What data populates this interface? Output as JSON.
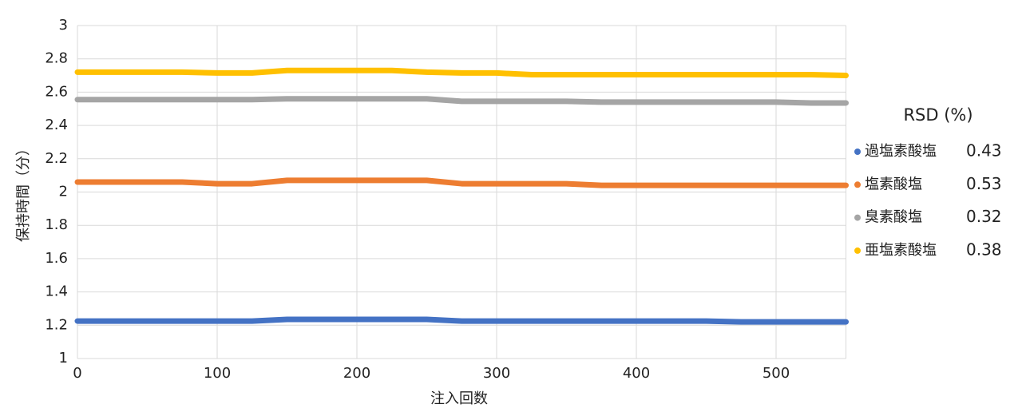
{
  "chart_data": {
    "type": "line",
    "x_label": "注入回数",
    "y_label": "保持時間（分）",
    "x": [
      0,
      25,
      50,
      75,
      100,
      125,
      150,
      175,
      200,
      225,
      250,
      275,
      300,
      325,
      350,
      375,
      400,
      425,
      450,
      475,
      500,
      525,
      550
    ],
    "xlim": [
      0,
      550
    ],
    "xticks": [
      0,
      100,
      200,
      300,
      400,
      500
    ],
    "ylim": [
      1,
      3
    ],
    "yticks": [
      1,
      1.2,
      1.4,
      1.6,
      1.8,
      2,
      2.2,
      2.4,
      2.6,
      2.8,
      3
    ],
    "grid": true,
    "legend_title": "RSD (%)",
    "legend_position": "right",
    "series": [
      {
        "name": "過塩素酸塩",
        "color": "#4472c4",
        "rsd": "0.43",
        "values": [
          1.225,
          1.225,
          1.225,
          1.225,
          1.225,
          1.225,
          1.235,
          1.235,
          1.235,
          1.235,
          1.235,
          1.225,
          1.225,
          1.225,
          1.225,
          1.225,
          1.225,
          1.225,
          1.225,
          1.22,
          1.22,
          1.22,
          1.22
        ]
      },
      {
        "name": "塩素酸塩",
        "color": "#ed7d31",
        "rsd": "0.53",
        "values": [
          2.06,
          2.06,
          2.06,
          2.06,
          2.05,
          2.05,
          2.07,
          2.07,
          2.07,
          2.07,
          2.07,
          2.05,
          2.05,
          2.05,
          2.05,
          2.04,
          2.04,
          2.04,
          2.04,
          2.04,
          2.04,
          2.04,
          2.04
        ]
      },
      {
        "name": "臭素酸塩",
        "color": "#a5a5a5",
        "rsd": "0.32",
        "values": [
          2.555,
          2.555,
          2.555,
          2.555,
          2.555,
          2.555,
          2.56,
          2.56,
          2.56,
          2.56,
          2.56,
          2.545,
          2.545,
          2.545,
          2.545,
          2.54,
          2.54,
          2.54,
          2.54,
          2.54,
          2.54,
          2.535,
          2.535
        ]
      },
      {
        "name": "亜塩素酸塩",
        "color": "#ffc000",
        "rsd": "0.38",
        "values": [
          2.72,
          2.72,
          2.72,
          2.72,
          2.715,
          2.715,
          2.73,
          2.73,
          2.73,
          2.73,
          2.72,
          2.715,
          2.715,
          2.705,
          2.705,
          2.705,
          2.705,
          2.705,
          2.705,
          2.705,
          2.705,
          2.705,
          2.7
        ]
      }
    ]
  }
}
